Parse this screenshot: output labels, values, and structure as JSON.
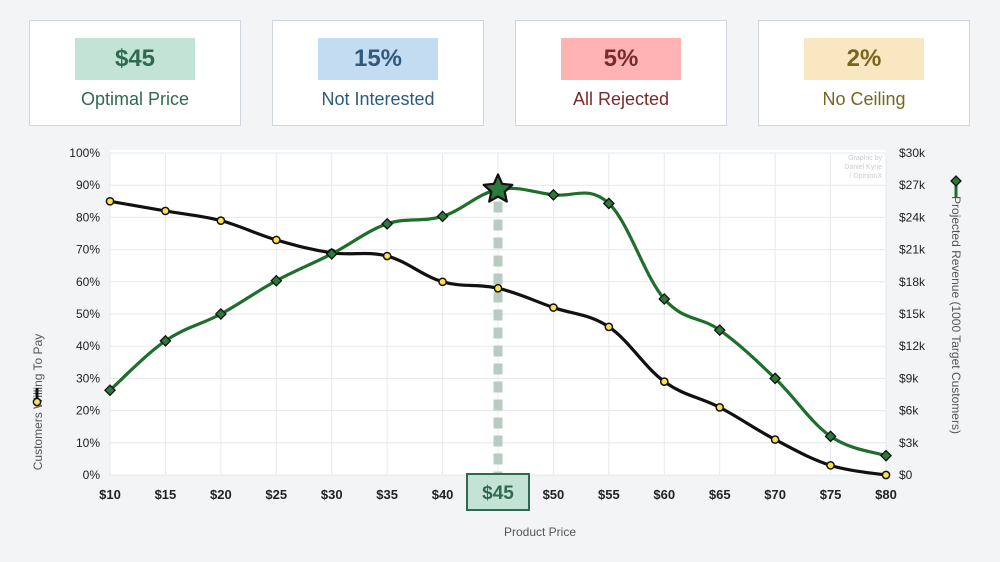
{
  "cards": [
    {
      "value": "$45",
      "label": "Optimal Price",
      "bg": "#c3e3d6",
      "fg": "#2f6a50"
    },
    {
      "value": "15%",
      "label": "Not Interested",
      "bg": "#c3dcf2",
      "fg": "#2e5a7d"
    },
    {
      "value": "5%",
      "label": "All Rejected",
      "bg": "#ffb3b3",
      "fg": "#7a2a2a"
    },
    {
      "value": "2%",
      "label": "No Ceiling",
      "bg": "#f9e7c1",
      "fg": "#7a6420"
    }
  ],
  "chart_data": {
    "type": "line",
    "xlabel": "Product Price",
    "ylabel_left": "Customers Willing To Pay",
    "ylabel_right": "Projected Revenue (1000 Target Customers)",
    "watermark": [
      "Graphic by",
      "Daniel Kyne",
      "/ OpinionX"
    ],
    "x": [
      10,
      15,
      20,
      25,
      30,
      35,
      40,
      45,
      50,
      55,
      60,
      65,
      70,
      75,
      80
    ],
    "x_tick_labels": [
      "$10",
      "$15",
      "$20",
      "$25",
      "$30",
      "$35",
      "$40",
      "$45",
      "$50",
      "$55",
      "$60",
      "$65",
      "$70",
      "$75",
      "$80"
    ],
    "y_left_ticks": [
      "0%",
      "10%",
      "20%",
      "30%",
      "40%",
      "50%",
      "60%",
      "70%",
      "80%",
      "90%",
      "100%"
    ],
    "y_right_ticks": [
      "$0",
      "$3k",
      "$6k",
      "$9k",
      "$12k",
      "$15k",
      "$18k",
      "$21k",
      "$24k",
      "$27k",
      "$30k"
    ],
    "ylim_left": [
      0,
      100
    ],
    "ylim_right": [
      0,
      30
    ],
    "grid": true,
    "optimal_price": 45,
    "optimal_label": "$45",
    "series": [
      {
        "axis": "left",
        "color": "#111111",
        "marker": "circle",
        "values": [
          85,
          82,
          79,
          73,
          69,
          68,
          60,
          58,
          52,
          46,
          29,
          21,
          11,
          3,
          0
        ]
      },
      {
        "axis": "right",
        "color": "#1f6e2c",
        "marker": "diamond",
        "values": [
          7.9,
          12.5,
          15.0,
          18.1,
          20.6,
          23.4,
          24.1,
          26.6,
          26.1,
          25.3,
          16.4,
          13.5,
          9.0,
          3.6,
          1.8
        ]
      }
    ]
  }
}
